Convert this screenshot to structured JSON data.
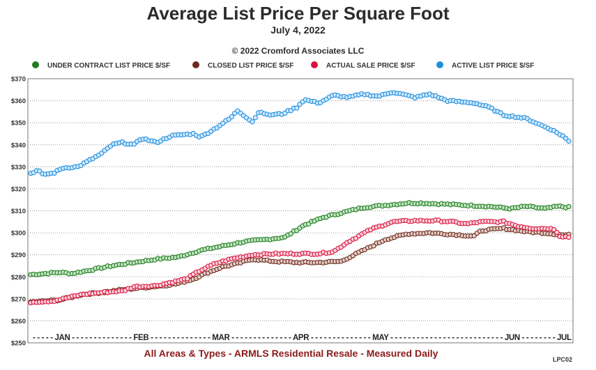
{
  "chart_data": {
    "type": "line",
    "title": "Average List Price Per Square Foot",
    "subtitle": "July 4, 2022",
    "copyright": "© 2022 Cromford Associates LLC",
    "footer": "All Areas & Types - ARMLS Residential Resale - Measured Daily",
    "code": "LPC02",
    "ylim": [
      250,
      370
    ],
    "y_ticks": [
      250,
      260,
      270,
      280,
      290,
      300,
      310,
      320,
      330,
      340,
      350,
      360,
      370
    ],
    "y_tick_labels": [
      "$250",
      "$260",
      "$270",
      "$280",
      "$290",
      "$300",
      "$310",
      "$320",
      "$330",
      "$340",
      "$350",
      "$360",
      "$370"
    ],
    "x_label_text": "- - - - - JAN - - - - - - - - - - - - - - FEB - - - - - - - - - - - - - - MAR - - - - - - - - - - - - - - APR - - - - - - - - - - - - - - MAY - - - - - - - - - - - - - - - - - - - - - - - - - - JUN - - - - - - - - JUL",
    "x_tick_labels": [
      "JAN",
      "FEB",
      "MAR",
      "APR",
      "MAY",
      "JUN",
      "JUL"
    ],
    "grid": true,
    "legend_position": "top",
    "series": [
      {
        "name": "UNDER CONTRACT LIST PRICE $/SF",
        "color": "#1e7d1e",
        "fill": "#c8e6c8",
        "points": [
          [
            0,
            281
          ],
          [
            10,
            281.5
          ],
          [
            20,
            282
          ],
          [
            28,
            281.5
          ],
          [
            40,
            283
          ],
          [
            55,
            285
          ],
          [
            70,
            286.5
          ],
          [
            85,
            288
          ],
          [
            100,
            289
          ],
          [
            115,
            292
          ],
          [
            130,
            294
          ],
          [
            145,
            296
          ],
          [
            160,
            297
          ],
          [
            172,
            298
          ],
          [
            185,
            303.5
          ],
          [
            198,
            307
          ],
          [
            210,
            309
          ],
          [
            225,
            311.5
          ],
          [
            240,
            312.5
          ],
          [
            255,
            313.5
          ],
          [
            265,
            313.5
          ],
          [
            280,
            313
          ],
          [
            295,
            312.5
          ],
          [
            310,
            312
          ],
          [
            325,
            311
          ],
          [
            335,
            312
          ],
          [
            348,
            311
          ],
          [
            357,
            312
          ],
          [
            365,
            311.5
          ]
        ]
      },
      {
        "name": "CLOSED LIST PRICE $/SF",
        "color": "#6b2a1e",
        "fill": "#e6cfc8",
        "points": [
          [
            0,
            268.5
          ],
          [
            20,
            269.5
          ],
          [
            35,
            272
          ],
          [
            50,
            273
          ],
          [
            60,
            274
          ],
          [
            75,
            275
          ],
          [
            90,
            276
          ],
          [
            100,
            277
          ],
          [
            110,
            279
          ],
          [
            120,
            282
          ],
          [
            130,
            284.5
          ],
          [
            140,
            286
          ],
          [
            150,
            288
          ],
          [
            165,
            287
          ],
          [
            180,
            286.5
          ],
          [
            195,
            286.5
          ],
          [
            210,
            287
          ],
          [
            225,
            292
          ],
          [
            240,
            297
          ],
          [
            255,
            299.5
          ],
          [
            270,
            300
          ],
          [
            290,
            299
          ],
          [
            300,
            298.5
          ],
          [
            305,
            301
          ],
          [
            320,
            302
          ],
          [
            335,
            300.5
          ],
          [
            347,
            300
          ],
          [
            360,
            299
          ]
        ]
      },
      {
        "name": "ACTUAL SALE PRICE $/SF",
        "color": "#d9133c",
        "fill": "#fbd5de",
        "points": [
          [
            0,
            268.5
          ],
          [
            15,
            269
          ],
          [
            25,
            270.5
          ],
          [
            35,
            272
          ],
          [
            50,
            273
          ],
          [
            62,
            273.5
          ],
          [
            70,
            275.5
          ],
          [
            85,
            276
          ],
          [
            95,
            277.5
          ],
          [
            105,
            279
          ],
          [
            115,
            283
          ],
          [
            125,
            286
          ],
          [
            135,
            288
          ],
          [
            150,
            290
          ],
          [
            165,
            290.5
          ],
          [
            180,
            290.5
          ],
          [
            195,
            290.5
          ],
          [
            205,
            291.5
          ],
          [
            215,
            296
          ],
          [
            230,
            301.5
          ],
          [
            245,
            305
          ],
          [
            260,
            305.5
          ],
          [
            275,
            305.5
          ],
          [
            285,
            305
          ],
          [
            295,
            304
          ],
          [
            305,
            305
          ],
          [
            320,
            305
          ],
          [
            330,
            303
          ],
          [
            340,
            302
          ],
          [
            350,
            302
          ],
          [
            355,
            301.5
          ],
          [
            358,
            298.5
          ],
          [
            365,
            298
          ]
        ]
      },
      {
        "name": "ACTIVE LIST PRICE $/SF",
        "color": "#1f8fe0",
        "fill": "#d3e9fa",
        "points": [
          [
            0,
            327
          ],
          [
            5,
            328.5
          ],
          [
            8,
            326.5
          ],
          [
            15,
            327
          ],
          [
            22,
            329.5
          ],
          [
            32,
            330
          ],
          [
            40,
            333
          ],
          [
            48,
            336
          ],
          [
            55,
            340
          ],
          [
            62,
            341
          ],
          [
            70,
            340
          ],
          [
            75,
            343
          ],
          [
            85,
            341
          ],
          [
            95,
            344
          ],
          [
            110,
            345
          ],
          [
            115,
            343.5
          ],
          [
            125,
            347.5
          ],
          [
            135,
            352
          ],
          [
            140,
            355.5
          ],
          [
            145,
            353
          ],
          [
            150,
            350.5
          ],
          [
            155,
            355.5
          ],
          [
            160,
            353.5
          ],
          [
            170,
            354
          ],
          [
            180,
            357
          ],
          [
            185,
            360.5
          ],
          [
            195,
            359
          ],
          [
            205,
            362.5
          ],
          [
            215,
            361.5
          ],
          [
            225,
            363
          ],
          [
            235,
            362
          ],
          [
            245,
            364
          ],
          [
            260,
            361.5
          ],
          [
            270,
            363
          ],
          [
            282,
            360
          ],
          [
            300,
            359
          ],
          [
            310,
            357
          ],
          [
            320,
            353.5
          ],
          [
            335,
            352
          ],
          [
            345,
            349
          ],
          [
            352,
            347
          ],
          [
            360,
            344
          ],
          [
            365,
            341
          ]
        ]
      }
    ]
  }
}
